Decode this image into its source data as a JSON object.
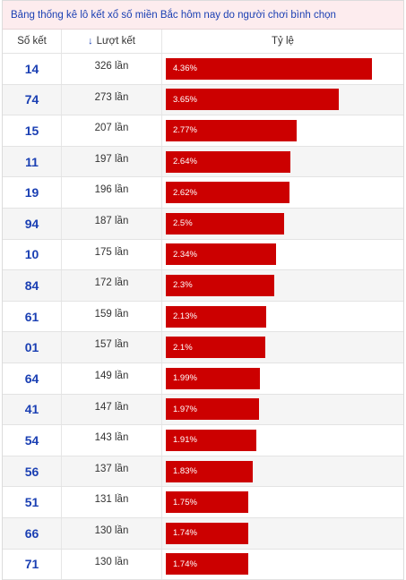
{
  "title": "Bảng thống kê lô kết xổ số miền Bắc hôm nay do người chơi bình chọn",
  "headers": {
    "so_ket": "Số kết",
    "luot_ket": "Lượt kết",
    "ty_le": "Tỷ lệ"
  },
  "colors": {
    "bar": "#cc0000",
    "accent": "#1a3fb3",
    "title_bg": "#fdecee"
  },
  "rows": [
    {
      "number": "14",
      "count": "326 lần",
      "rate": "4.36%",
      "value": 4.36
    },
    {
      "number": "74",
      "count": "273 lần",
      "rate": "3.65%",
      "value": 3.65
    },
    {
      "number": "15",
      "count": "207 lần",
      "rate": "2.77%",
      "value": 2.77
    },
    {
      "number": "11",
      "count": "197 lần",
      "rate": "2.64%",
      "value": 2.64
    },
    {
      "number": "19",
      "count": "196 lần",
      "rate": "2.62%",
      "value": 2.62
    },
    {
      "number": "94",
      "count": "187 lần",
      "rate": "2.5%",
      "value": 2.5
    },
    {
      "number": "10",
      "count": "175 lần",
      "rate": "2.34%",
      "value": 2.34
    },
    {
      "number": "84",
      "count": "172 lần",
      "rate": "2.3%",
      "value": 2.3
    },
    {
      "number": "61",
      "count": "159 lần",
      "rate": "2.13%",
      "value": 2.13
    },
    {
      "number": "01",
      "count": "157 lần",
      "rate": "2.1%",
      "value": 2.1
    },
    {
      "number": "64",
      "count": "149 lần",
      "rate": "1.99%",
      "value": 1.99
    },
    {
      "number": "41",
      "count": "147 lần",
      "rate": "1.97%",
      "value": 1.97
    },
    {
      "number": "54",
      "count": "143 lần",
      "rate": "1.91%",
      "value": 1.91
    },
    {
      "number": "56",
      "count": "137 lần",
      "rate": "1.83%",
      "value": 1.83
    },
    {
      "number": "51",
      "count": "131 lần",
      "rate": "1.75%",
      "value": 1.75
    },
    {
      "number": "66",
      "count": "130 lần",
      "rate": "1.74%",
      "value": 1.74
    },
    {
      "number": "71",
      "count": "130 lần",
      "rate": "1.74%",
      "value": 1.74
    }
  ]
}
